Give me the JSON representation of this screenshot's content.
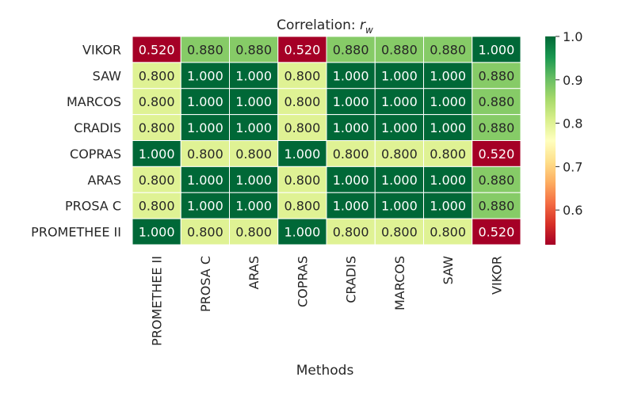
{
  "chart_data": {
    "type": "heatmap",
    "title_prefix": "Correlation: ",
    "title_symbol": "r",
    "title_subscript": "w",
    "xlabel": "Methods",
    "ylabel": "",
    "x_categories": [
      "PROMETHEE II",
      "PROSA C",
      "ARAS",
      "COPRAS",
      "CRADIS",
      "MARCOS",
      "SAW",
      "VIKOR"
    ],
    "y_categories": [
      "VIKOR",
      "SAW",
      "MARCOS",
      "CRADIS",
      "COPRAS",
      "ARAS",
      "PROSA C",
      "PROMETHEE II"
    ],
    "values": [
      [
        0.52,
        0.88,
        0.88,
        0.52,
        0.88,
        0.88,
        0.88,
        1.0
      ],
      [
        0.8,
        1.0,
        1.0,
        0.8,
        1.0,
        1.0,
        1.0,
        0.88
      ],
      [
        0.8,
        1.0,
        1.0,
        0.8,
        1.0,
        1.0,
        1.0,
        0.88
      ],
      [
        0.8,
        1.0,
        1.0,
        0.8,
        1.0,
        1.0,
        1.0,
        0.88
      ],
      [
        1.0,
        0.8,
        0.8,
        1.0,
        0.8,
        0.8,
        0.8,
        0.52
      ],
      [
        0.8,
        1.0,
        1.0,
        0.8,
        1.0,
        1.0,
        1.0,
        0.88
      ],
      [
        0.8,
        1.0,
        1.0,
        0.8,
        1.0,
        1.0,
        1.0,
        0.88
      ],
      [
        1.0,
        0.8,
        0.8,
        1.0,
        0.8,
        0.8,
        0.8,
        0.52
      ]
    ],
    "value_format_decimals": 3,
    "colormap": "RdYlGn",
    "vmin": 0.52,
    "vmax": 1.0,
    "colorbar_ticks": [
      "0.6",
      "0.7",
      "0.8",
      "0.9",
      "1.0"
    ],
    "colors": {
      "low": "#a50026",
      "mid": "#feffbe",
      "high": "#006837",
      "grid_lines": "#ffffff"
    }
  }
}
